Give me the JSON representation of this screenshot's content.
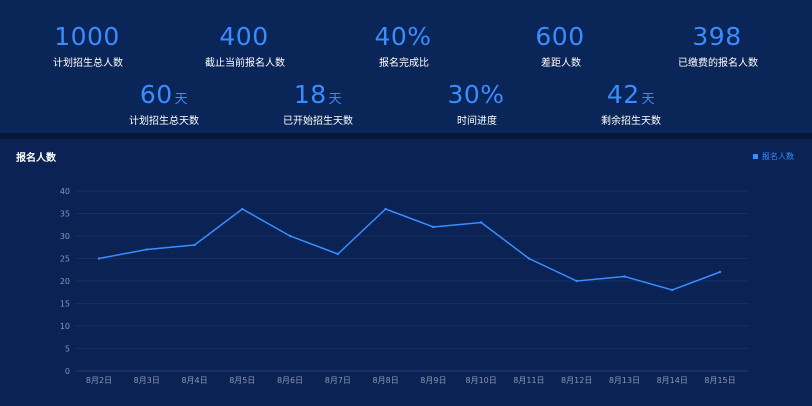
{
  "stats": {
    "row1": [
      {
        "value": "1000",
        "unit": "",
        "label": "计划招生总人数"
      },
      {
        "value": "400",
        "unit": "",
        "label": "截止当前报名人数"
      },
      {
        "value": "40%",
        "unit": "",
        "label": "报名完成比"
      },
      {
        "value": "600",
        "unit": "",
        "label": "差距人数"
      },
      {
        "value": "398",
        "unit": "",
        "label": "已缴费的报名人数"
      }
    ],
    "row2": [
      {
        "value": "60",
        "unit": "天",
        "label": "计划招生总天数"
      },
      {
        "value": "18",
        "unit": "天",
        "label": "已开始招生天数"
      },
      {
        "value": "30%",
        "unit": "",
        "label": "时间进度"
      },
      {
        "value": "42",
        "unit": "天",
        "label": "剩余招生天数"
      }
    ]
  },
  "chart_data": {
    "type": "line",
    "title": "报名人数",
    "categories": [
      "8月2日",
      "8月3日",
      "8月4日",
      "8月5日",
      "8月6日",
      "8月7日",
      "8月8日",
      "8月9日",
      "8月10日",
      "8月11日",
      "8月12日",
      "8月13日",
      "8月14日",
      "8月15日"
    ],
    "series": [
      {
        "name": "报名人数",
        "values": [
          25,
          27,
          28,
          36,
          30,
          26,
          36,
          32,
          33,
          25,
          20,
          21,
          18,
          22
        ]
      }
    ],
    "ylim": [
      0,
      40
    ],
    "yticks": [
      0,
      5,
      10,
      15,
      20,
      25,
      30,
      35,
      40
    ],
    "grid": true,
    "legend": "top-right",
    "color": "#3a8cff"
  }
}
